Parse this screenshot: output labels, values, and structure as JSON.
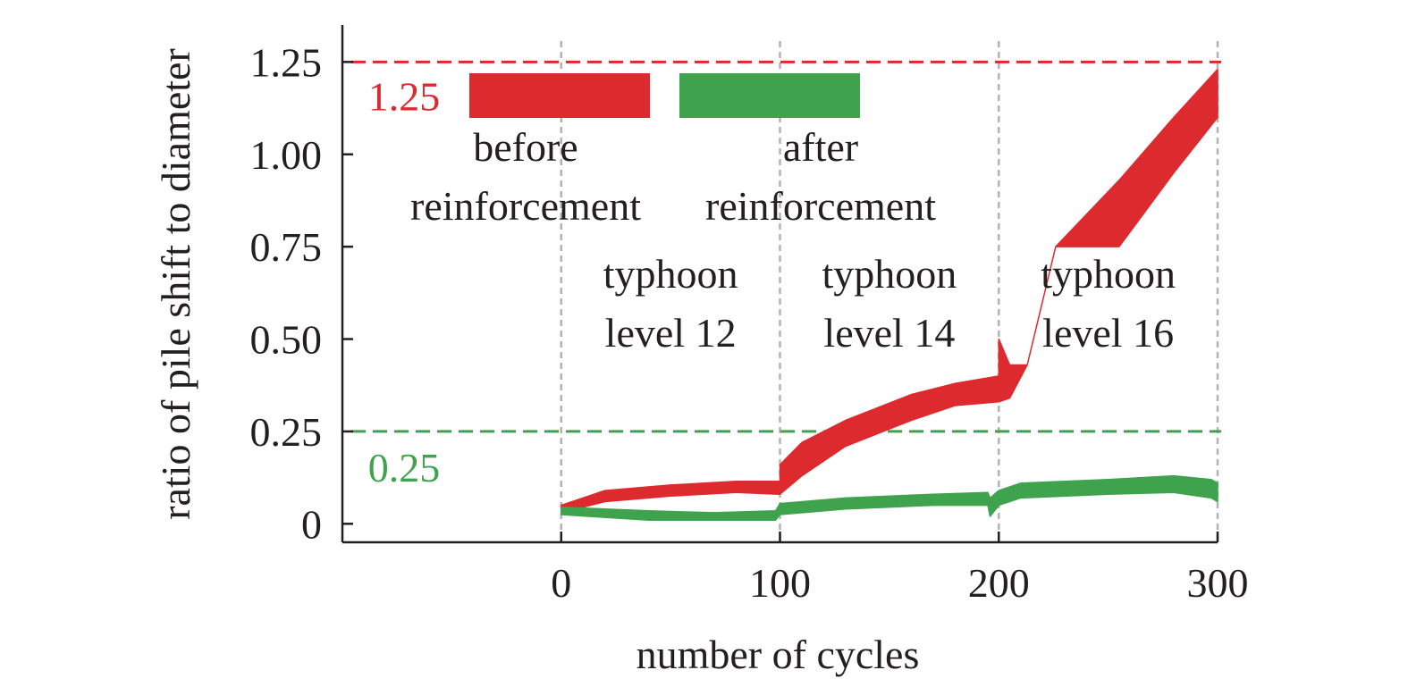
{
  "chart_data": {
    "type": "line",
    "xlabel": "number of cycles",
    "ylabel": "ratio of pile shift to diameter",
    "xlim": [
      -100,
      300
    ],
    "ylim": [
      -0.05,
      1.35
    ],
    "x_ticks": [
      {
        "value": 0,
        "label": "0"
      },
      {
        "value": 100,
        "label": "100"
      },
      {
        "value": 200,
        "label": "200"
      },
      {
        "value": 300,
        "label": "300"
      }
    ],
    "y_ticks": [
      {
        "value": 0,
        "label": "0"
      },
      {
        "value": 0.25,
        "label": "0.25"
      },
      {
        "value": 0.5,
        "label": "0.50"
      },
      {
        "value": 0.75,
        "label": "0.75"
      },
      {
        "value": 1.0,
        "label": "1.00"
      },
      {
        "value": 1.25,
        "label": "1.25"
      }
    ],
    "vertical_lines": [
      0,
      100,
      200,
      300
    ],
    "reference_lines": [
      {
        "y": 1.25,
        "label": "1.25",
        "color": "#dc2a2f"
      },
      {
        "y": 0.25,
        "label": "0.25",
        "color": "#3fa34d"
      }
    ],
    "legend": [
      {
        "label_line1": "before",
        "label_line2": "reinforcement",
        "color": "#dc2a2f"
      },
      {
        "label_line1": "after",
        "label_line2": "reinforcement",
        "color": "#3fa34d"
      }
    ],
    "annotations": [
      {
        "line1": "typhoon",
        "line2": "level 12",
        "x": 50
      },
      {
        "line1": "typhoon",
        "line2": "level 14",
        "x": 150
      },
      {
        "line1": "typhoon",
        "line2": "level 16",
        "x": 250
      }
    ],
    "series": [
      {
        "color": "#dc2a2f",
        "band": [
          {
            "x": 0,
            "lo": 0.03,
            "hi": 0.05
          },
          {
            "x": 20,
            "lo": 0.06,
            "hi": 0.09
          },
          {
            "x": 50,
            "lo": 0.075,
            "hi": 0.105
          },
          {
            "x": 80,
            "lo": 0.085,
            "hi": 0.115
          },
          {
            "x": 100,
            "lo": 0.08,
            "hi": 0.115
          },
          {
            "x": 100,
            "lo": 0.08,
            "hi": 0.16
          },
          {
            "x": 110,
            "lo": 0.13,
            "hi": 0.22
          },
          {
            "x": 130,
            "lo": 0.21,
            "hi": 0.28
          },
          {
            "x": 160,
            "lo": 0.28,
            "hi": 0.35
          },
          {
            "x": 180,
            "lo": 0.32,
            "hi": 0.38
          },
          {
            "x": 200,
            "lo": 0.33,
            "hi": 0.4
          },
          {
            "x": 200,
            "lo": 0.33,
            "hi": 0.5
          },
          {
            "x": 205,
            "lo": 0.34,
            "hi": 0.43
          },
          {
            "x": 213,
            "lo": 0.43,
            "hi": 0.43
          },
          {
            "x": 226,
            "lo": 0.75,
            "hi": 0.75
          },
          {
            "x": 255,
            "lo": 0.75,
            "hi": 0.93
          },
          {
            "x": 280,
            "lo": 0.95,
            "hi": 1.1
          },
          {
            "x": 300,
            "lo": 1.1,
            "hi": 1.23
          }
        ]
      },
      {
        "color": "#3fa34d",
        "band": [
          {
            "x": 0,
            "lo": 0.025,
            "hi": 0.045
          },
          {
            "x": 40,
            "lo": 0.01,
            "hi": 0.035
          },
          {
            "x": 70,
            "lo": 0.01,
            "hi": 0.03
          },
          {
            "x": 98,
            "lo": 0.01,
            "hi": 0.035
          },
          {
            "x": 100,
            "lo": 0.025,
            "hi": 0.055
          },
          {
            "x": 130,
            "lo": 0.04,
            "hi": 0.07
          },
          {
            "x": 170,
            "lo": 0.05,
            "hi": 0.08
          },
          {
            "x": 195,
            "lo": 0.05,
            "hi": 0.085
          },
          {
            "x": 196,
            "lo": 0.02,
            "hi": 0.07
          },
          {
            "x": 200,
            "lo": 0.05,
            "hi": 0.09
          },
          {
            "x": 210,
            "lo": 0.07,
            "hi": 0.11
          },
          {
            "x": 250,
            "lo": 0.08,
            "hi": 0.12
          },
          {
            "x": 280,
            "lo": 0.085,
            "hi": 0.13
          },
          {
            "x": 297,
            "lo": 0.07,
            "hi": 0.12
          },
          {
            "x": 300,
            "lo": 0.06,
            "hi": 0.11
          }
        ]
      }
    ]
  }
}
